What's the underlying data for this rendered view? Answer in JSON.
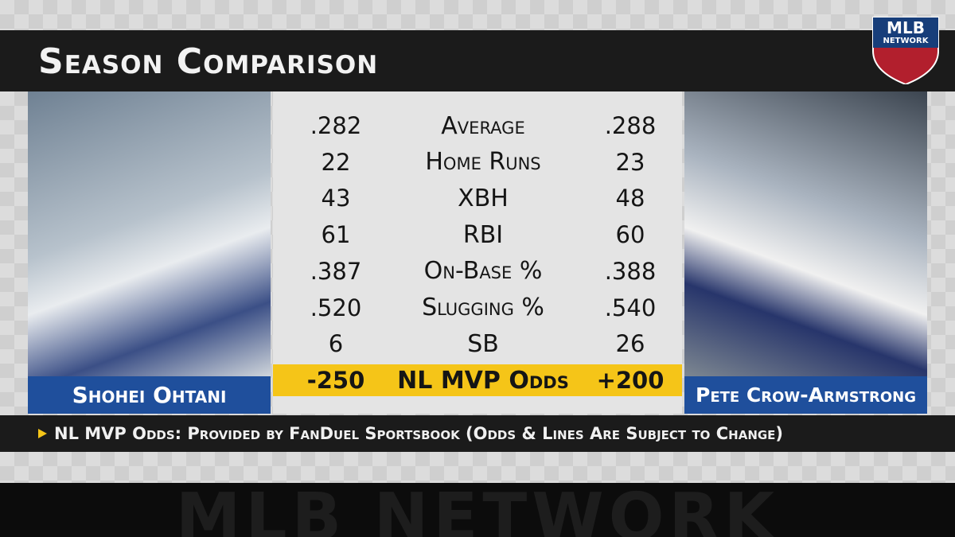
{
  "header": {
    "title": "Season Comparison"
  },
  "logo": {
    "line1": "MLB",
    "line2": "NETWORK"
  },
  "players": {
    "left": "Shohei Ohtani",
    "right": "Pete Crow-Armstrong"
  },
  "stats": {
    "rows": [
      [
        ".282",
        "Average",
        ".288"
      ],
      [
        "22",
        "Home Runs",
        "23"
      ],
      [
        "43",
        "XBH",
        "48"
      ],
      [
        "61",
        "RBI",
        "60"
      ],
      [
        ".387",
        "On-Base %",
        ".388"
      ],
      [
        ".520",
        "Slugging %",
        ".540"
      ],
      [
        "6",
        "SB",
        "26"
      ]
    ],
    "odds_row": [
      "-250",
      "NL MVP Odds",
      "+200"
    ]
  },
  "footer": {
    "note": "NL MVP Odds: Provided by FanDuel Sportsbook (Odds & Lines Are Subject to Change)"
  },
  "watermark": "MLB NETWORK"
}
